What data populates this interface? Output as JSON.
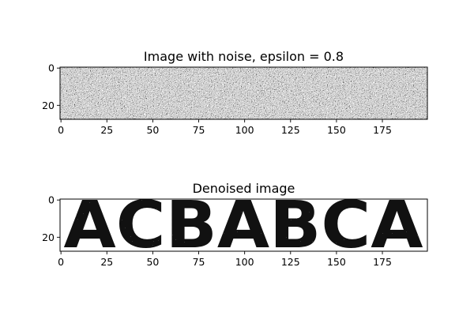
{
  "chart_data": [
    {
      "type": "heatmap",
      "title": "Image with noise, epsilon = 0.8",
      "xlim": [
        -0.5,
        199.5
      ],
      "ylim": [
        27.5,
        -0.5
      ],
      "xticks": [
        0,
        25,
        50,
        75,
        100,
        125,
        150,
        175
      ],
      "yticks": [
        0,
        20
      ],
      "colormap": "gray"
    },
    {
      "type": "heatmap",
      "title": "Denoised image",
      "xlim": [
        -0.5,
        199.5
      ],
      "ylim": [
        27.5,
        -0.5
      ],
      "xticks": [
        0,
        25,
        50,
        75,
        100,
        125,
        150,
        175
      ],
      "yticks": [
        0,
        20
      ],
      "colormap": "gray",
      "content_text": "ACBABCA"
    }
  ]
}
